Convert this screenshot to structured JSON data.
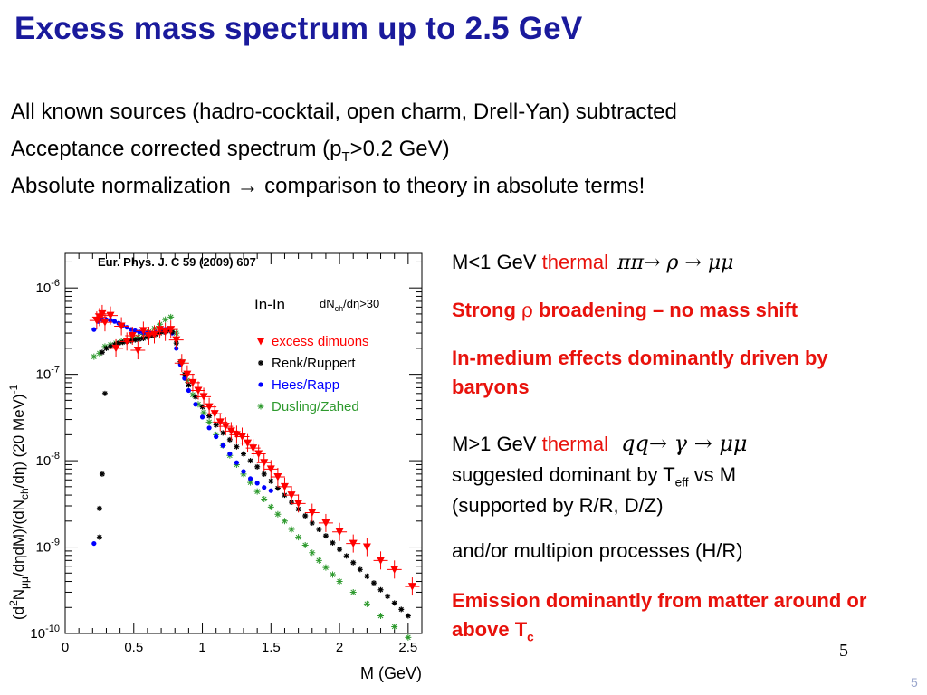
{
  "title": "Excess mass spectrum up to 2.5 GeV",
  "bullets": {
    "b1": "All known sources (hadro-cocktail, open charm, Drell-Yan) subtracted",
    "b2_pre": "Acceptance corrected spectrum (p",
    "b2_sub": "T",
    "b2_post": ">0.2 GeV)",
    "b3": "Absolute normalization → comparison to theory in absolute terms!"
  },
  "right": {
    "r1_pre": "M<1 GeV ",
    "r1_thermal": "thermal",
    "r1_formula": "ππ→ ρ → μμ",
    "r2_pre": "Strong ",
    "r2_rho": "ρ",
    "r2_post": " broadening – no mass shift",
    "r3": "In-medium effects dominantly driven by baryons",
    "r4_pre": "M>1 GeV ",
    "r4_thermal": "thermal",
    "r4_formula": "qq→ γ → μμ",
    "r5_pre": "suggested dominant by T",
    "r5_sub": "eff",
    "r5_post": " vs M",
    "r6": "(supported by R/R, D/Z)",
    "r7": "and/or multipion processes (H/R)",
    "r8_pre": "Emission dominantly from matter around or above T",
    "r8_sub": "c"
  },
  "page_number": "5",
  "page_number_corner": "5",
  "colors": {
    "title": "#1a1a9c",
    "red": "#e8120c",
    "excess": "#ff0000",
    "hees": "#0000ff",
    "dusling": "#2e9a2e",
    "renk": "#000000"
  },
  "chart_data": {
    "type": "scatter",
    "reference": "Eur. Phys. J. C  59  (2009) 607",
    "system": "In-In",
    "cut": "dN",
    "cut_sub": "ch",
    "cut_post": "/dη>30",
    "xlabel": "M (GeV)",
    "ylabel": "(d²N_μμ/dηdM)/(dN_ch/dη) (20 MeV)⁻¹",
    "ylabel_parts": [
      "(d",
      "2",
      "N",
      "μμ",
      "/dηdM)/(dN",
      "ch",
      "/dη) (20 MeV)",
      "-1"
    ],
    "xlim": [
      0,
      2.6
    ],
    "ylim_log10": [
      -10,
      -5.6
    ],
    "xticks": [
      0,
      0.5,
      1,
      1.5,
      2,
      2.5
    ],
    "xtick_labels": [
      "0",
      "0.5",
      "1",
      "1.5",
      "2",
      "2.5"
    ],
    "yticks_log10": [
      -10,
      -9,
      -8,
      -7,
      -6
    ],
    "ytick_bases": [
      "10",
      "10",
      "10",
      "10",
      "10"
    ],
    "ytick_exps": [
      "-10",
      "-9",
      "-8",
      "-7",
      "-6"
    ],
    "legend": {
      "placement": "top-right",
      "entries": [
        "excess dimuons",
        "Renk/Ruppert",
        "Hees/Rapp",
        "Dusling/Zahed"
      ]
    },
    "series": [
      {
        "name": "excess dimuons",
        "marker": "triangle-down",
        "x": [
          0.23,
          0.25,
          0.27,
          0.29,
          0.33,
          0.37,
          0.41,
          0.45,
          0.49,
          0.53,
          0.57,
          0.61,
          0.65,
          0.69,
          0.73,
          0.77,
          0.81,
          0.85,
          0.89,
          0.93,
          0.97,
          1.01,
          1.05,
          1.09,
          1.13,
          1.17,
          1.21,
          1.25,
          1.29,
          1.33,
          1.37,
          1.41,
          1.45,
          1.5,
          1.55,
          1.6,
          1.65,
          1.7,
          1.8,
          1.9,
          2.0,
          2.1,
          2.2,
          2.3,
          2.4,
          2.53
        ],
        "y": [
          4.2e-07,
          4.6e-07,
          5e-07,
          4e-07,
          4.8e-07,
          2e-07,
          3.6e-07,
          2.4e-07,
          2.8e-07,
          1.9e-07,
          3.2e-07,
          2.8e-07,
          2.9e-07,
          3.3e-07,
          3.1e-07,
          3.3e-07,
          2.5e-07,
          1.35e-07,
          1e-07,
          8e-08,
          6.5e-08,
          5.5e-08,
          4.2e-08,
          3.5e-08,
          2.8e-08,
          2.5e-08,
          2.2e-08,
          2e-08,
          1.9e-08,
          1.6e-08,
          1.4e-08,
          1.2e-08,
          9.5e-09,
          8e-09,
          6.5e-09,
          5e-09,
          4e-09,
          3.2e-09,
          2.5e-09,
          1.9e-09,
          1.5e-09,
          1.1e-09,
          1e-09,
          7e-10,
          5.5e-10,
          3.5e-10
        ]
      },
      {
        "name": "Renk/Ruppert",
        "marker": "star-black",
        "x": [
          0.27,
          0.3,
          0.33,
          0.36,
          0.39,
          0.42,
          0.45,
          0.48,
          0.51,
          0.54,
          0.57,
          0.6,
          0.63,
          0.66,
          0.69,
          0.72,
          0.75,
          0.78,
          0.81,
          0.84,
          0.87,
          0.9,
          0.95,
          1.0,
          1.05,
          1.1,
          1.15,
          1.2,
          1.25,
          1.3,
          1.35,
          1.4,
          1.45,
          1.5,
          1.55,
          1.6,
          1.65,
          1.7,
          1.75,
          1.8,
          1.85,
          1.9,
          1.95,
          2.0,
          2.05,
          2.1,
          2.15,
          2.2,
          2.25,
          2.3,
          2.35,
          2.4,
          2.45,
          2.5
        ],
        "y": [
          1.8e-07,
          2e-07,
          2.1e-07,
          2.2e-07,
          2.3e-07,
          2.35e-07,
          2.4e-07,
          2.45e-07,
          2.5e-07,
          2.55e-07,
          2.6e-07,
          2.7e-07,
          2.8e-07,
          2.9e-07,
          3e-07,
          3.1e-07,
          3.2e-07,
          3.1e-07,
          2.3e-07,
          1.4e-07,
          1e-07,
          7.5e-08,
          5.5e-08,
          4.2e-08,
          3.3e-08,
          2.6e-08,
          2.1e-08,
          1.75e-08,
          1.45e-08,
          1.2e-08,
          1e-08,
          8.5e-09,
          7e-09,
          5.8e-09,
          4.8e-09,
          4e-09,
          3.3e-09,
          2.75e-09,
          2.3e-09,
          1.9e-09,
          1.6e-09,
          1.35e-09,
          1.12e-09,
          9.4e-10,
          7.9e-10,
          6.6e-10,
          5.5e-10,
          4.6e-10,
          3.85e-10,
          3.2e-10,
          2.7e-10,
          2.25e-10,
          1.9e-10,
          1.6e-10
        ]
      },
      {
        "name": "Hees/Rapp",
        "marker": "circle-blue",
        "x": [
          0.21,
          0.24,
          0.27,
          0.3,
          0.33,
          0.36,
          0.39,
          0.42,
          0.45,
          0.48,
          0.51,
          0.54,
          0.57,
          0.6,
          0.63,
          0.66,
          0.69,
          0.72,
          0.75,
          0.78,
          0.81,
          0.84,
          0.87,
          0.9,
          0.95,
          1.0,
          1.05,
          1.1,
          1.15,
          1.2,
          1.25,
          1.3,
          1.35,
          1.4,
          1.45,
          1.5
        ],
        "y": [
          3.3e-07,
          4.1e-07,
          4.3e-07,
          4.3e-07,
          4.25e-07,
          4.1e-07,
          3.9e-07,
          3.7e-07,
          3.5e-07,
          3.3e-07,
          3.2e-07,
          3.1e-07,
          3.05e-07,
          3e-07,
          3e-07,
          3.05e-07,
          3.1e-07,
          3.3e-07,
          3.4e-07,
          3e-07,
          2e-07,
          1.3e-07,
          9e-08,
          6.5e-08,
          4.5e-08,
          3.2e-08,
          2.4e-08,
          1.9e-08,
          1.5e-08,
          1.2e-08,
          9.5e-09,
          7.5e-09,
          6.2e-09,
          5.5e-09,
          4.9e-09,
          4.5e-09
        ]
      },
      {
        "name": "Dusling/Zahed",
        "marker": "star-green",
        "x": [
          0.21,
          0.25,
          0.29,
          0.33,
          0.37,
          0.41,
          0.45,
          0.49,
          0.53,
          0.57,
          0.61,
          0.65,
          0.69,
          0.73,
          0.77,
          0.81,
          0.85,
          0.89,
          0.93,
          0.97,
          1.01,
          1.05,
          1.1,
          1.15,
          1.2,
          1.25,
          1.3,
          1.35,
          1.4,
          1.45,
          1.5,
          1.55,
          1.6,
          1.65,
          1.7,
          1.75,
          1.8,
          1.85,
          1.9,
          1.95,
          2.0,
          2.1,
          2.2,
          2.3,
          2.4,
          2.5
        ],
        "y": [
          1.6e-07,
          1.75e-07,
          2.1e-07,
          2.2e-07,
          2.3e-07,
          2.4e-07,
          2.5e-07,
          2.6e-07,
          2.7e-07,
          2.9e-07,
          3.1e-07,
          3.4e-07,
          3.8e-07,
          4.3e-07,
          4.6e-07,
          3e-07,
          1.4e-07,
          8.5e-08,
          5.8e-08,
          4.5e-08,
          3.6e-08,
          2.8e-08,
          2e-08,
          1.5e-08,
          1.15e-08,
          9e-09,
          7e-09,
          5.6e-09,
          4.4e-09,
          3.6e-09,
          2.9e-09,
          2.4e-09,
          2e-09,
          1.6e-09,
          1.3e-09,
          1.05e-09,
          8.6e-10,
          7e-10,
          5.8e-10,
          4.8e-10,
          4e-10,
          3e-10,
          2.2e-10,
          1.6e-10,
          1.2e-10,
          9e-11
        ]
      }
    ],
    "low_mass_stray_points": [
      {
        "series": "Renk/Ruppert",
        "x": 0.27,
        "y": 7e-09
      },
      {
        "series": "Renk/Ruppert",
        "x": 0.25,
        "y": 2.8e-09
      },
      {
        "series": "Renk/Ruppert",
        "x": 0.25,
        "y": 1.3e-09
      },
      {
        "series": "Renk/Ruppert",
        "x": 0.29,
        "y": 6e-08
      },
      {
        "series": "Hees/Rapp",
        "x": 0.21,
        "y": 1.1e-09
      }
    ]
  }
}
